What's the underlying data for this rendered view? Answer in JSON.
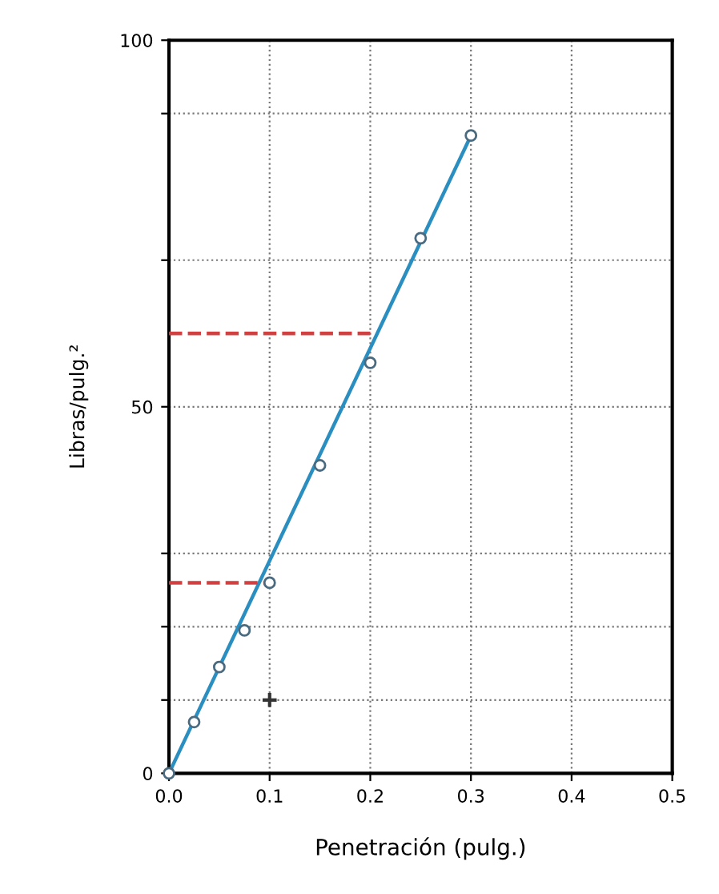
{
  "chart_data": {
    "type": "scatter",
    "xlabel": "Penetración (pulg.)",
    "ylabel": "Libras/pulg.²",
    "xlim": [
      0,
      0.5
    ],
    "ylim": [
      0,
      100
    ],
    "xticks": [
      {
        "value": 0,
        "label": "0.0"
      },
      0.1,
      0.2,
      0.3,
      0.4,
      0.5
    ],
    "yticks": [
      0,
      {
        "value": 10,
        "label": null
      },
      {
        "value": 20,
        "label": null
      },
      {
        "value": 30,
        "label": null
      },
      50,
      {
        "value": 70,
        "label": null
      },
      {
        "value": 90,
        "label": null
      },
      100
    ],
    "grid": true,
    "legend": false,
    "series": [
      {
        "type": "line",
        "color": "#2a8fc0",
        "x": [
          0,
          0.3
        ],
        "values": [
          0,
          87
        ],
        "marker": "none",
        "line_style": "solid"
      },
      {
        "color": "#4a6a80",
        "x": [
          0,
          0.025,
          0.05,
          0.075,
          0.1,
          0.15,
          0.2,
          0.25,
          0.3
        ],
        "values": [
          0,
          7,
          14.5,
          19.5,
          26,
          42,
          56,
          73,
          87
        ],
        "marker": "circle"
      },
      {
        "type": "line",
        "color": "#d04040",
        "x": [
          0,
          0.2
        ],
        "values": [
          60,
          60
        ],
        "marker": "none",
        "line_style": "dashed"
      },
      {
        "type": "line",
        "color": "#d04040",
        "x": [
          0,
          0.1
        ],
        "values": [
          26,
          26
        ],
        "marker": "none",
        "line_style": "dashed"
      },
      {
        "type": "scatter",
        "color": "#333333",
        "x": [
          0.1
        ],
        "values": [
          10
        ],
        "marker": "cross"
      }
    ]
  }
}
